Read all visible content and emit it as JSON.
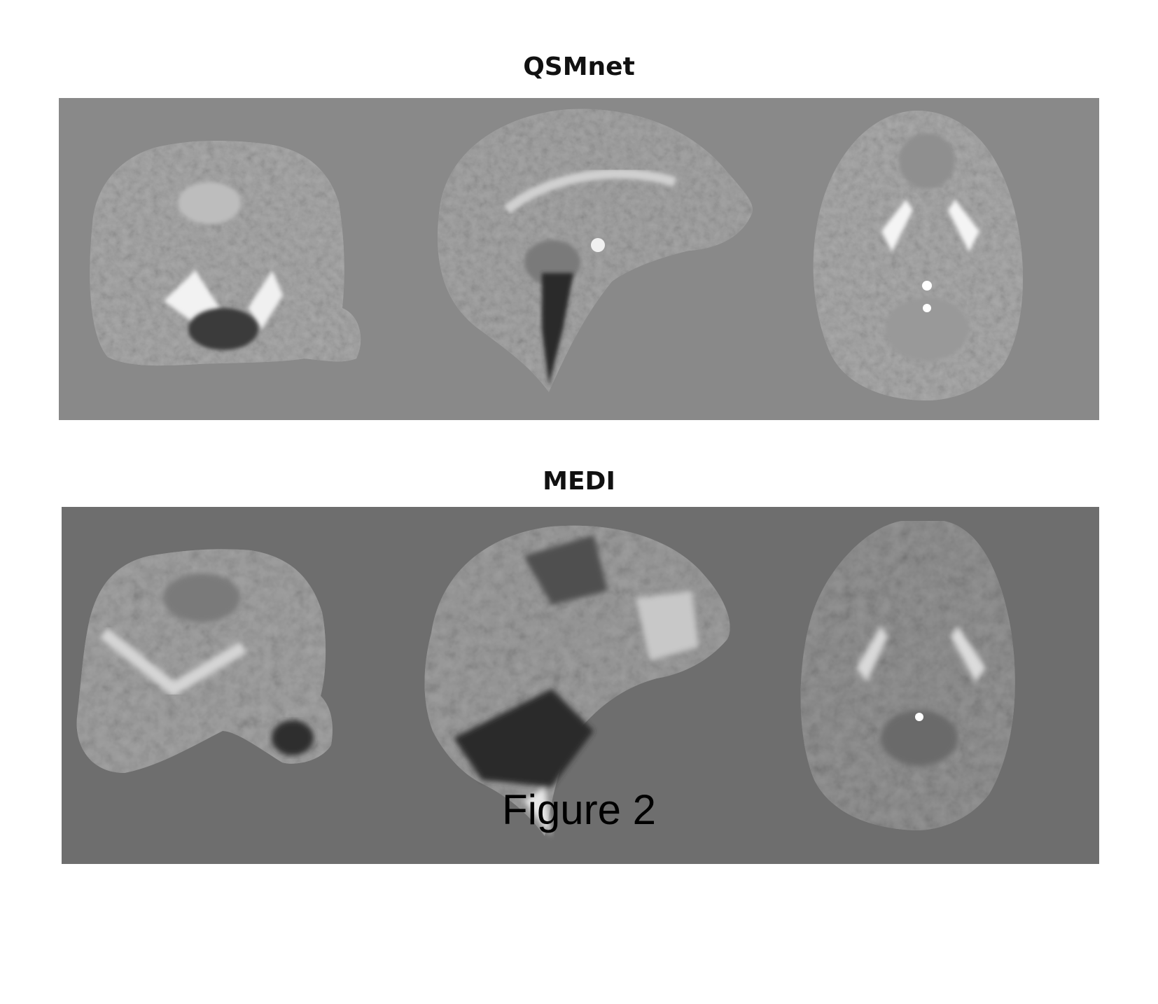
{
  "figure": {
    "caption": "Figure 2",
    "panels": [
      {
        "title": "QSMnet",
        "views": [
          "coronal",
          "sagittal",
          "axial"
        ],
        "background": "#898989"
      },
      {
        "title": "MEDI",
        "views": [
          "coronal",
          "sagittal",
          "axial"
        ],
        "background": "#6e6e6e"
      }
    ]
  }
}
